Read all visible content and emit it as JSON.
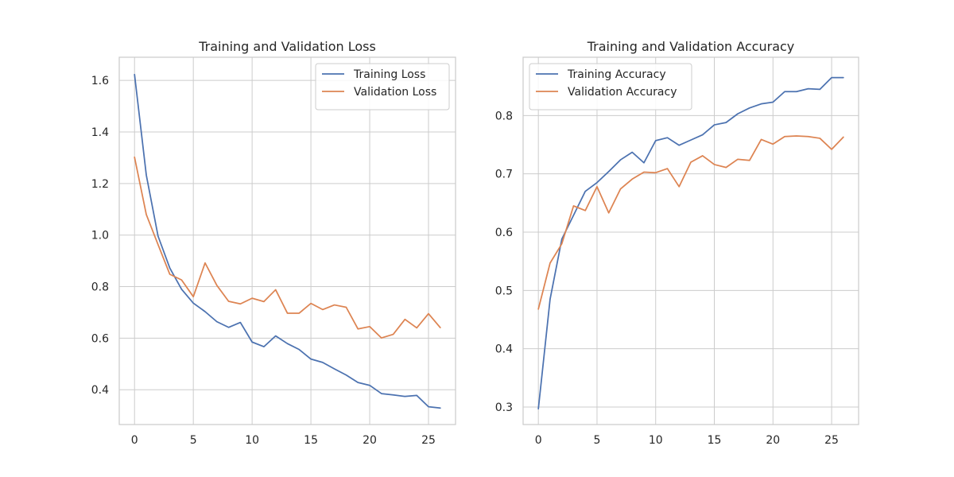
{
  "chart_data": [
    {
      "type": "line",
      "title": "Training and Validation Loss",
      "xlabel": "",
      "ylabel": "",
      "xlim": [
        -1.3,
        27.3
      ],
      "ylim": [
        0.265,
        1.69
      ],
      "xticks": [
        0,
        5,
        10,
        15,
        20,
        25
      ],
      "yticks": [
        0.4,
        0.6,
        0.8,
        1.0,
        1.2,
        1.4,
        1.6
      ],
      "ytick_labels": [
        "0.4",
        "0.6",
        "0.8",
        "1.0",
        "1.2",
        "1.4",
        "1.6"
      ],
      "grid": true,
      "legend_position": "top-right",
      "x": [
        0,
        1,
        2,
        3,
        4,
        5,
        6,
        7,
        8,
        9,
        10,
        11,
        12,
        13,
        14,
        15,
        16,
        17,
        18,
        19,
        20,
        21,
        22,
        23,
        24,
        25,
        26
      ],
      "series": [
        {
          "name": "Training Loss",
          "color": "#4c72b0",
          "values": [
            1.623,
            1.233,
            0.996,
            0.872,
            0.79,
            0.736,
            0.703,
            0.664,
            0.642,
            0.661,
            0.585,
            0.567,
            0.609,
            0.579,
            0.556,
            0.519,
            0.506,
            0.481,
            0.457,
            0.428,
            0.417,
            0.385,
            0.38,
            0.374,
            0.378,
            0.334,
            0.329
          ]
        },
        {
          "name": "Validation Loss",
          "color": "#dd8452",
          "values": [
            1.302,
            1.08,
            0.963,
            0.848,
            0.826,
            0.761,
            0.892,
            0.805,
            0.743,
            0.733,
            0.755,
            0.742,
            0.788,
            0.697,
            0.697,
            0.735,
            0.711,
            0.729,
            0.72,
            0.636,
            0.645,
            0.601,
            0.615,
            0.673,
            0.64,
            0.695,
            0.641
          ]
        }
      ]
    },
    {
      "type": "line",
      "title": "Training and Validation Accuracy",
      "xlabel": "",
      "ylabel": "",
      "xlim": [
        -1.3,
        27.3
      ],
      "ylim": [
        0.27,
        0.9
      ],
      "xticks": [
        0,
        5,
        10,
        15,
        20,
        25
      ],
      "yticks": [
        0.3,
        0.4,
        0.5,
        0.6,
        0.7,
        0.8
      ],
      "ytick_labels": [
        "0.3",
        "0.4",
        "0.5",
        "0.6",
        "0.7",
        "0.8"
      ],
      "grid": true,
      "legend_position": "top-left",
      "x": [
        0,
        1,
        2,
        3,
        4,
        5,
        6,
        7,
        8,
        9,
        10,
        11,
        12,
        13,
        14,
        15,
        16,
        17,
        18,
        19,
        20,
        21,
        22,
        23,
        24,
        25,
        26
      ],
      "series": [
        {
          "name": "Training Accuracy",
          "color": "#4c72b0",
          "values": [
            0.297,
            0.485,
            0.588,
            0.629,
            0.67,
            0.685,
            0.704,
            0.724,
            0.737,
            0.719,
            0.757,
            0.762,
            0.749,
            0.758,
            0.767,
            0.784,
            0.788,
            0.803,
            0.813,
            0.82,
            0.823,
            0.841,
            0.841,
            0.846,
            0.845,
            0.865,
            0.865
          ]
        },
        {
          "name": "Validation Accuracy",
          "color": "#dd8452",
          "values": [
            0.468,
            0.547,
            0.58,
            0.645,
            0.637,
            0.678,
            0.633,
            0.674,
            0.691,
            0.703,
            0.702,
            0.709,
            0.678,
            0.72,
            0.731,
            0.716,
            0.711,
            0.725,
            0.723,
            0.759,
            0.751,
            0.764,
            0.765,
            0.764,
            0.761,
            0.742,
            0.763
          ]
        }
      ]
    }
  ]
}
